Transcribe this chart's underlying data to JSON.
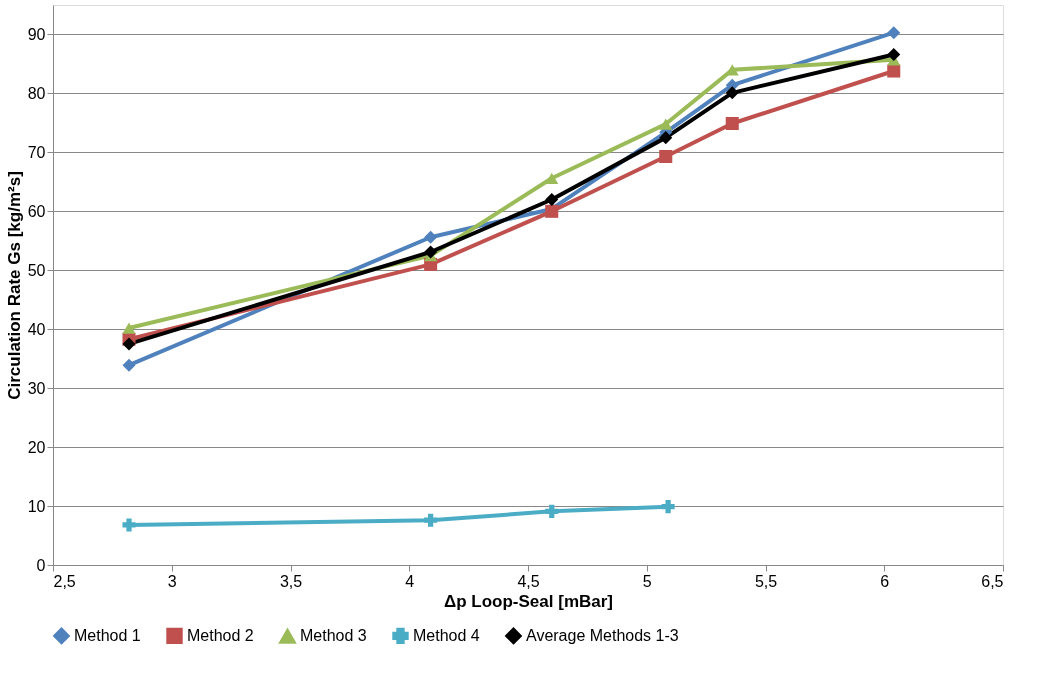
{
  "chart_data": {
    "type": "line",
    "xlabel": "Δp Loop-Seal [mBar]",
    "ylabel": "Circulation Rate Gs [kg/m²s]",
    "xlim": [
      2.5,
      6.5
    ],
    "xticks": [
      {
        "value": 2.5,
        "label": "2,5"
      },
      3,
      {
        "value": 3.5,
        "label": "3,5"
      },
      4,
      {
        "value": 4.5,
        "label": "4,5"
      },
      5,
      {
        "value": 5.5,
        "label": "5,5"
      },
      6,
      {
        "value": 6.5,
        "label": "6,5"
      }
    ],
    "ylim": [
      0,
      95
    ],
    "yticks": [
      0,
      10,
      20,
      30,
      40,
      50,
      60,
      70,
      80,
      90
    ],
    "grid": "y",
    "legend": "bottom",
    "line_style": "solid",
    "series": [
      {
        "name": "Method 1",
        "color": "#4f81bd",
        "marker": "diamond",
        "x": [
          2.82,
          4.09,
          4.6,
          5.08,
          5.36,
          6.04
        ],
        "values": [
          33.9,
          55.6,
          60.4,
          73.4,
          81.4,
          90.3
        ]
      },
      {
        "name": "Method 2",
        "color": "#c0504d",
        "marker": "square",
        "x": [
          2.82,
          4.09,
          4.6,
          5.08,
          5.36,
          6.04
        ],
        "values": [
          38.3,
          51.0,
          60.0,
          69.3,
          74.9,
          83.8
        ]
      },
      {
        "name": "Method 3",
        "color": "#9bbb59",
        "marker": "triangle",
        "x": [
          2.82,
          4.09,
          4.6,
          5.08,
          5.36,
          6.04
        ],
        "values": [
          40.2,
          52.5,
          65.6,
          74.8,
          84.0,
          85.7
        ]
      },
      {
        "name": "Method 4",
        "color": "#4bacc6",
        "marker": "cross",
        "x": [
          2.82,
          4.09,
          4.6,
          5.09
        ],
        "values": [
          6.8,
          7.6,
          9.1,
          9.9
        ]
      },
      {
        "name": "Average Methods 1-3",
        "color": "#000000",
        "marker": "diamond",
        "x": [
          2.82,
          4.09,
          4.6,
          5.08,
          5.36,
          6.04
        ],
        "values": [
          37.5,
          53.1,
          62.0,
          72.5,
          80.1,
          86.6
        ]
      }
    ]
  }
}
